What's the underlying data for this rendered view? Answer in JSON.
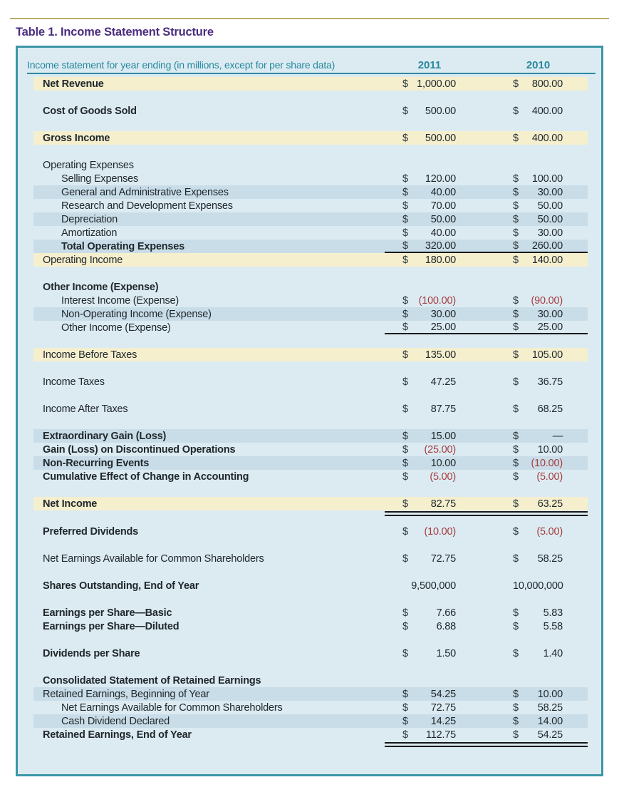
{
  "title": "Table 1. Income Statement Structure",
  "colors": {
    "accent_teal": "#2b8ba1",
    "border_teal": "#3a97a8",
    "title_purple": "#4a2d7f",
    "table_background": "#dcebf2",
    "highlight_cream": "#f5efce",
    "stripe_blue": "#c9dde8",
    "negative_red": "#a63d40",
    "gold_rule": "#b9ac6a"
  },
  "table": {
    "header": {
      "label": "Income statement for year ending (in millions, except for per share data)",
      "col1": "2011",
      "col2": "2010"
    },
    "rows": [
      {
        "label": "Net Revenue",
        "bold": true,
        "band": "cream",
        "d1": "$",
        "v1": "1,000.00",
        "d2": "$",
        "v2": "800.00",
        "gap_after": true
      },
      {
        "label": "Cost of Goods Sold",
        "bold": true,
        "d1": "$",
        "v1": "500.00",
        "d2": "$",
        "v2": "400.00",
        "gap_after": true
      },
      {
        "label": "Gross Income",
        "bold": true,
        "band": "cream",
        "d1": "$",
        "v1": "500.00",
        "d2": "$",
        "v2": "400.00",
        "gap_after": true
      },
      {
        "label": "Operating Expenses"
      },
      {
        "label": "Selling Expenses",
        "indent": true,
        "d1": "$",
        "v1": "120.00",
        "d2": "$",
        "v2": "100.00"
      },
      {
        "label": "General and Administrative Expenses",
        "indent": true,
        "band": "stripe",
        "d1": "$",
        "v1": "40.00",
        "d2": "$",
        "v2": "30.00"
      },
      {
        "label": "Research and Development Expenses",
        "indent": true,
        "d1": "$",
        "v1": "70.00",
        "d2": "$",
        "v2": "50.00"
      },
      {
        "label": "Depreciation",
        "indent": true,
        "band": "stripe",
        "d1": "$",
        "v1": "50.00",
        "d2": "$",
        "v2": "50.00"
      },
      {
        "label": "Amortization",
        "indent": true,
        "d1": "$",
        "v1": "40.00",
        "d2": "$",
        "v2": "30.00"
      },
      {
        "label": "Total Operating Expenses",
        "indent": true,
        "bold": true,
        "band": "stripe",
        "d1": "$",
        "v1": "320.00",
        "d2": "$",
        "v2": "260.00",
        "rule": "single"
      },
      {
        "label": "Operating Income",
        "band": "cream",
        "d1": "$",
        "v1": "180.00",
        "d2": "$",
        "v2": "140.00",
        "gap_after": true
      },
      {
        "label": "Other Income (Expense)",
        "bold": true
      },
      {
        "label": "Interest Income (Expense)",
        "indent": true,
        "d1": "$",
        "v1": "(100.00)",
        "neg1": true,
        "d2": "$",
        "v2": "(90.00)",
        "neg2": true
      },
      {
        "label": "Non-Operating Income (Expense)",
        "indent": true,
        "band": "stripe",
        "d1": "$",
        "v1": "30.00",
        "d2": "$",
        "v2": "30.00"
      },
      {
        "label": "Other Income (Expense)",
        "indent": true,
        "d1": "$",
        "v1": "25.00",
        "d2": "$",
        "v2": "25.00",
        "rule": "single",
        "gap_after": true
      },
      {
        "label": "Income Before Taxes",
        "band": "cream",
        "d1": "$",
        "v1": "135.00",
        "d2": "$",
        "v2": "105.00",
        "gap_after": true
      },
      {
        "label": "Income Taxes",
        "d1": "$",
        "v1": "47.25",
        "d2": "$",
        "v2": "36.75",
        "gap_after": true
      },
      {
        "label": "Income After Taxes",
        "d1": "$",
        "v1": "87.75",
        "d2": "$",
        "v2": "68.25",
        "gap_after": true
      },
      {
        "label": "Extraordinary Gain (Loss)",
        "bold": true,
        "band": "stripe",
        "d1": "$",
        "v1": "15.00",
        "d2": "$",
        "v2": "—"
      },
      {
        "label": "Gain (Loss) on Discontinued Operations",
        "bold": true,
        "d1": "$",
        "v1": "(25.00)",
        "neg1": true,
        "d2": "$",
        "v2": "10.00"
      },
      {
        "label": "Non-Recurring Events",
        "bold": true,
        "band": "stripe",
        "d1": "$",
        "v1": "10.00",
        "d2": "$",
        "v2": "(10.00)",
        "neg2": true
      },
      {
        "label": "Cumulative Effect of Change in Accounting",
        "bold": true,
        "d1": "$",
        "v1": "(5.00)",
        "neg1": true,
        "d2": "$",
        "v2": "(5.00)",
        "neg2": true,
        "gap_after": true
      },
      {
        "label": "Net Income",
        "bold": true,
        "band": "cream",
        "d1": "$",
        "v1": "82.75",
        "d2": "$",
        "v2": "63.25",
        "rule": "double",
        "gap_after": "sm"
      },
      {
        "label": "Preferred Dividends",
        "bold": true,
        "d1": "$",
        "v1": "(10.00)",
        "neg1": true,
        "d2": "$",
        "v2": "(5.00)",
        "neg2": true,
        "gap_after": true
      },
      {
        "label": "Net Earnings Available for Common Shareholders",
        "d1": "$",
        "v1": "72.75",
        "d2": "$",
        "v2": "58.25",
        "gap_after": true
      },
      {
        "label": "Shares Outstanding, End of Year",
        "bold": true,
        "d1": "",
        "v1": "9,500,000",
        "d2": "",
        "v2": "10,000,000",
        "gap_after": true
      },
      {
        "label": "Earnings per Share—Basic",
        "bold": true,
        "d1": "$",
        "v1": "7.66",
        "d2": "$",
        "v2": "5.83"
      },
      {
        "label": "Earnings per Share—Diluted",
        "bold": true,
        "d1": "$",
        "v1": "6.88",
        "d2": "$",
        "v2": "5.58",
        "gap_after": true
      },
      {
        "label": "Dividends per Share",
        "bold": true,
        "d1": "$",
        "v1": "1.50",
        "d2": "$",
        "v2": "1.40",
        "gap_after": true
      },
      {
        "label": "Consolidated Statement of Retained Earnings",
        "bold": true
      },
      {
        "label": "Retained Earnings, Beginning of Year",
        "band": "stripe",
        "d1": "$",
        "v1": "54.25",
        "d2": "$",
        "v2": "10.00"
      },
      {
        "label": "Net Earnings Available for Common Shareholders",
        "indent": true,
        "d1": "$",
        "v1": "72.75",
        "d2": "$",
        "v2": "58.25"
      },
      {
        "label": "Cash Dividend Declared",
        "indent": true,
        "band": "stripe",
        "d1": "$",
        "v1": "14.25",
        "d2": "$",
        "v2": "14.00"
      },
      {
        "label": "Retained Earnings, End of Year",
        "bold": true,
        "d1": "$",
        "v1": "112.75",
        "d2": "$",
        "v2": "54.25",
        "rule": "double"
      }
    ]
  }
}
